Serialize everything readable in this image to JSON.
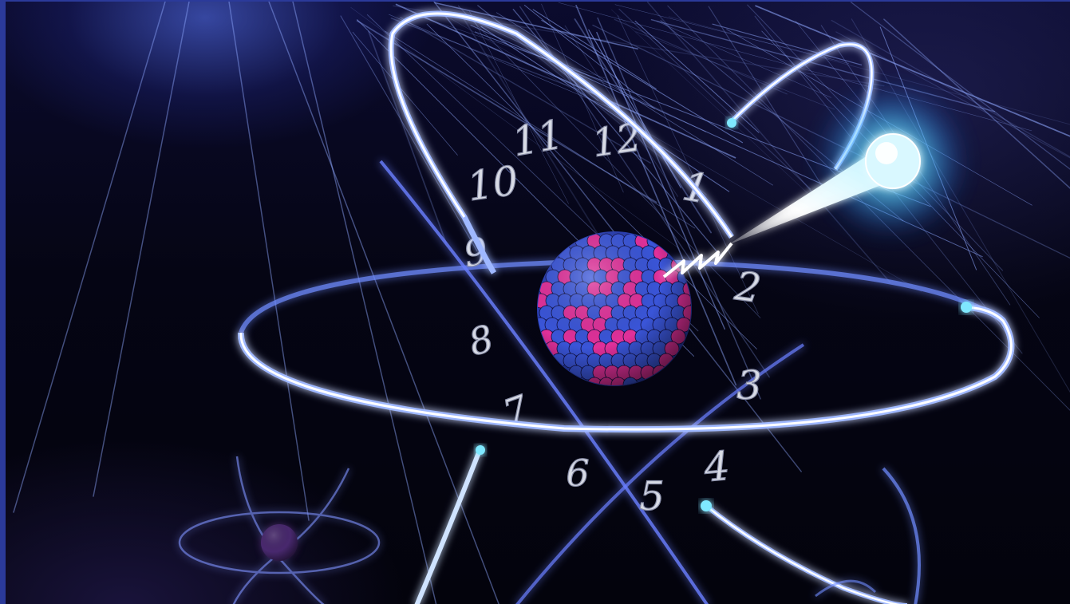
{
  "clock_numerals": [
    "12",
    "1",
    "2",
    "3",
    "4",
    "5",
    "6",
    "7",
    "8",
    "9",
    "10",
    "11"
  ],
  "colors": {
    "background": "#05051a",
    "orbit_glow": "#6fa8ff",
    "orbit_core": "#ffffff",
    "nucleus_proton": "#e0309a",
    "nucleus_neutron": "#3a55d8",
    "photon_glow": "#4fd8ff",
    "electron_tip": "#7fe8ff"
  },
  "icons": {
    "main_atom": "atom-icon",
    "small_atom": "atom-icon",
    "photon": "photon-icon"
  }
}
